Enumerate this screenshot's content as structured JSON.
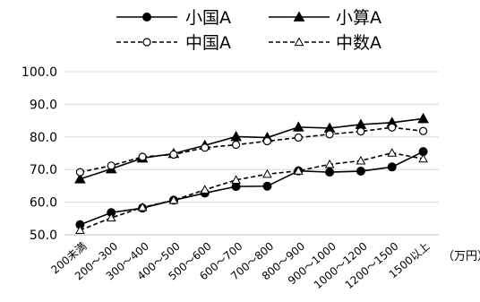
{
  "chart_data": {
    "type": "line",
    "categories": [
      "200未満",
      "200～300",
      "300～400",
      "400～500",
      "500～600",
      "600～700",
      "700～800",
      "800～900",
      "900～1000",
      "1000～1200",
      "1200～1500",
      "1500以上"
    ],
    "unit_label": "（万円）",
    "ylim": [
      50,
      100
    ],
    "yticks": [
      "50.0",
      "60.0",
      "70.0",
      "80.0",
      "90.0",
      "100.0"
    ],
    "grid": true,
    "legend_position": "top",
    "series": [
      {
        "name": "小国A",
        "style": "solid",
        "marker": "circle-filled",
        "values": [
          53.1,
          56.8,
          58.2,
          60.6,
          62.8,
          64.8,
          64.9,
          69.6,
          69.2,
          69.5,
          70.8,
          75.5
        ]
      },
      {
        "name": "小算A",
        "style": "solid",
        "marker": "triangle-filled",
        "values": [
          67.1,
          70.2,
          73.5,
          74.9,
          77.4,
          80.1,
          79.8,
          83.0,
          82.7,
          83.8,
          84.4,
          85.6
        ]
      },
      {
        "name": "中国A",
        "style": "dashed",
        "marker": "circle-open",
        "values": [
          69.2,
          71.2,
          73.9,
          74.6,
          76.7,
          77.6,
          78.7,
          79.8,
          80.8,
          81.7,
          82.9,
          81.8
        ]
      },
      {
        "name": "中数A",
        "style": "dashed",
        "marker": "triangle-open",
        "values": [
          51.4,
          55.2,
          58.4,
          60.6,
          63.8,
          66.8,
          68.6,
          69.6,
          71.6,
          72.7,
          75.1,
          73.3
        ]
      }
    ]
  }
}
